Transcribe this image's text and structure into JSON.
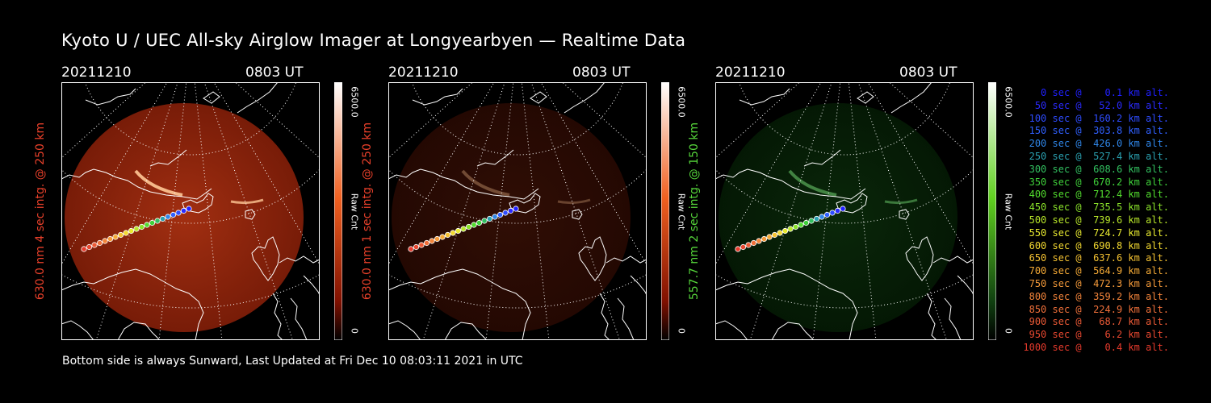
{
  "title": "Kyoto U / UEC All-sky Airglow Imager at Longyearbyen — Realtime Data",
  "footer": "Bottom side is always Sunward, Last Updated at Fri Dec 10 08:03:11 2021 in UTC",
  "panels": [
    {
      "date": "20211210",
      "time": "0803 UT",
      "ylabel": "630.0 nm 4 sec intg. @ 250 km",
      "cb_max": "6500.0",
      "cb_unit": "Raw Cnt",
      "cb_min": "0",
      "color": "#e8402a",
      "tint": "red",
      "brightness": 1.0
    },
    {
      "date": "20211210",
      "time": "0803 UT",
      "ylabel": "630.0 nm 1 sec intg. @ 250 km",
      "cb_max": "6500.0",
      "cb_unit": "Raw Cnt",
      "cb_min": "0",
      "color": "#e8402a",
      "tint": "red",
      "brightness": 0.3
    },
    {
      "date": "20211210",
      "time": "0803 UT",
      "ylabel": "557.7 nm 2 sec intg. @ 150 km",
      "cb_max": "6500.0",
      "cb_unit": "Raw Cnt",
      "cb_min": "0",
      "color": "#55d43a",
      "tint": "green",
      "brightness": 0.55
    }
  ],
  "legend": [
    {
      "text": "   0 sec @    0.1 km alt.",
      "color": "#2020ff"
    },
    {
      "text": "  50 sec @   52.0 km alt.",
      "color": "#2a2aff"
    },
    {
      "text": " 100 sec @  160.2 km alt.",
      "color": "#2e4cff"
    },
    {
      "text": " 150 sec @  303.8 km alt.",
      "color": "#3060ff"
    },
    {
      "text": " 200 sec @  426.0 km alt.",
      "color": "#2f86e8"
    },
    {
      "text": " 250 sec @  527.4 km alt.",
      "color": "#2aa0b0"
    },
    {
      "text": " 300 sec @  608.6 km alt.",
      "color": "#32c060"
    },
    {
      "text": " 350 sec @  670.2 km alt.",
      "color": "#3fd03a"
    },
    {
      "text": " 400 sec @  712.4 km alt.",
      "color": "#52dc2e"
    },
    {
      "text": " 450 sec @  735.5 km alt.",
      "color": "#8ae22a"
    },
    {
      "text": " 500 sec @  739.6 km alt.",
      "color": "#b8e62a"
    },
    {
      "text": " 550 sec @  724.7 km alt.",
      "color": "#e8ea30"
    },
    {
      "text": " 600 sec @  690.8 km alt.",
      "color": "#f2d830"
    },
    {
      "text": " 650 sec @  637.6 km alt.",
      "color": "#f5c232"
    },
    {
      "text": " 700 sec @  564.9 km alt.",
      "color": "#f5aa36"
    },
    {
      "text": " 750 sec @  472.3 km alt.",
      "color": "#f59a3a"
    },
    {
      "text": " 800 sec @  359.2 km alt.",
      "color": "#f3843a"
    },
    {
      "text": " 850 sec @  224.9 km alt.",
      "color": "#f0703a"
    },
    {
      "text": " 900 sec @   68.7 km alt.",
      "color": "#ec5a36"
    },
    {
      "text": " 950 sec @    6.2 km alt.",
      "color": "#e84830"
    },
    {
      "text": "1000 sec @    0.4 km alt.",
      "color": "#e63a2c"
    }
  ]
}
